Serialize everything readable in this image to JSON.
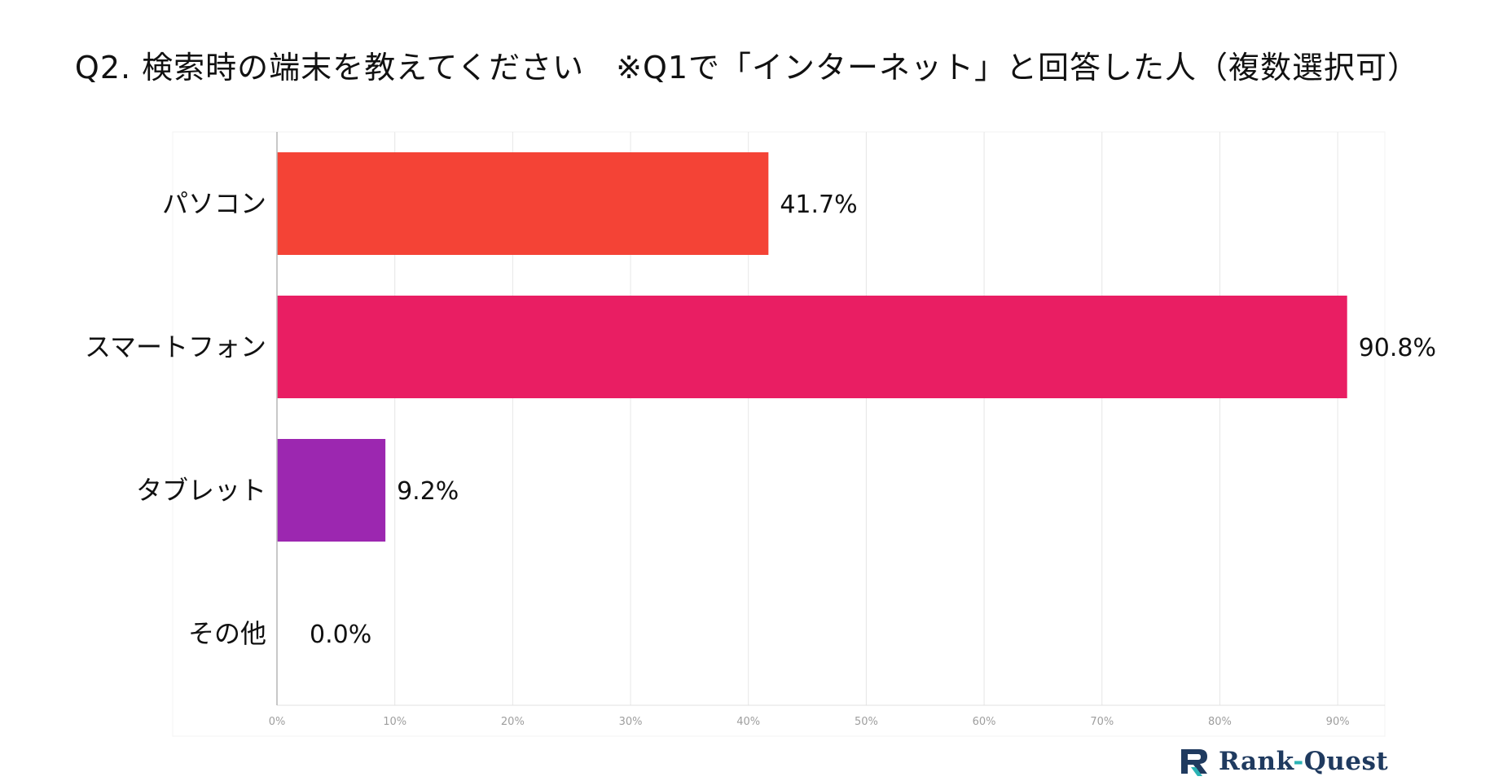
{
  "title": "Q2. 検索時の端末を教えてください　※Q1で「インターネット」と回答した人（複数選択可）",
  "chart_data": {
    "type": "bar",
    "orientation": "horizontal",
    "title": "Q2. 検索時の端末を教えてください　※Q1で「インターネット」と回答した人（複数選択可）",
    "categories": [
      "パソコン",
      "スマートフォン",
      "タブレット",
      "その他"
    ],
    "values": [
      41.7,
      90.8,
      9.2,
      0.0
    ],
    "data_labels": [
      "41.7%",
      "90.8%",
      "9.2%",
      "0.0%"
    ],
    "colors": [
      "#f44336",
      "#e91e63",
      "#9c27b0",
      "#673ab7"
    ],
    "xlim": [
      0,
      94
    ],
    "x_ticks": [
      0,
      10,
      20,
      30,
      40,
      50,
      60,
      70,
      80,
      90
    ],
    "x_tick_labels": [
      "0%",
      "10%",
      "20%",
      "30%",
      "40%",
      "50%",
      "60%",
      "70%",
      "80%",
      "90%"
    ],
    "xlabel": "",
    "ylabel": "",
    "grid": true
  },
  "brand": {
    "name_part1": "Rank",
    "separator": "-",
    "name_part2": "Quest",
    "logo_icon": "rank-quest-logo-icon",
    "logo_color": "#1f3a5f",
    "accent_color": "#2bb3b5"
  }
}
